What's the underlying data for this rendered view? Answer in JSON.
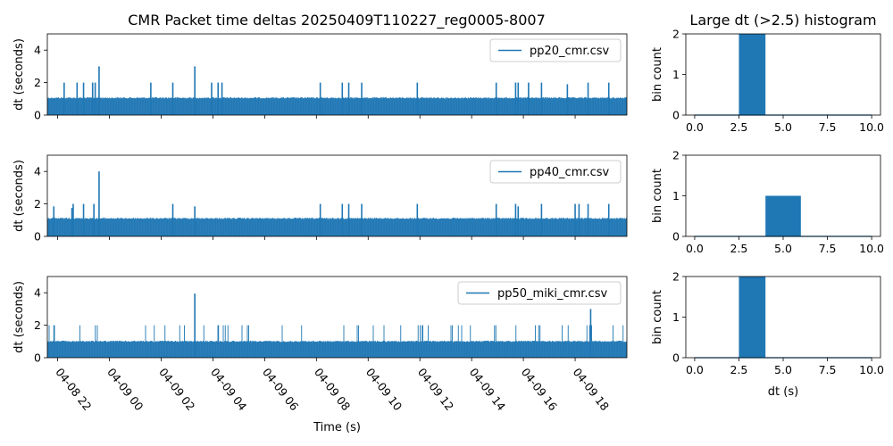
{
  "figure": {
    "title": "CMR Packet time deltas 20250409T110227_reg0005-8007",
    "hist_title": "Large dt (>2.5) histogram"
  },
  "chart_data": [
    {
      "type": "line",
      "legend": "pp20_cmr.csv",
      "xlabel": "",
      "ylabel": "dt (seconds)",
      "xlim": [
        -0.4,
        22.0
      ],
      "ylim": [
        0,
        5
      ],
      "yticks": [
        0,
        2,
        4
      ],
      "xtick_values": [
        0,
        2,
        4,
        6,
        8,
        10,
        12,
        14,
        16,
        18,
        20
      ],
      "xtick_labels": [
        "04-08 22",
        "04-09 00",
        "04-09 02",
        "04-09 04",
        "04-09 06",
        "04-09 08",
        "04-09 10",
        "04-09 12",
        "04-09 14",
        "04-09 16",
        "04-09 18"
      ],
      "baseline_max": 1.1,
      "spikes": [
        [
          0.25,
          2.0
        ],
        [
          0.75,
          2.0
        ],
        [
          1.0,
          2.0
        ],
        [
          1.35,
          2.0
        ],
        [
          1.45,
          2.0
        ],
        [
          1.6,
          3.0
        ],
        [
          3.6,
          2.0
        ],
        [
          4.45,
          2.0
        ],
        [
          5.3,
          3.0
        ],
        [
          5.95,
          2.0
        ],
        [
          6.2,
          2.0
        ],
        [
          6.35,
          2.0
        ],
        [
          10.15,
          2.0
        ],
        [
          11.0,
          2.0
        ],
        [
          11.25,
          2.0
        ],
        [
          11.75,
          2.0
        ],
        [
          13.9,
          2.0
        ],
        [
          16.95,
          2.0
        ],
        [
          17.7,
          2.0
        ],
        [
          17.8,
          2.0
        ],
        [
          18.2,
          2.0
        ],
        [
          18.7,
          2.0
        ],
        [
          19.7,
          1.9
        ],
        [
          20.5,
          2.0
        ],
        [
          21.3,
          2.0
        ]
      ]
    },
    {
      "type": "line",
      "legend": "pp40_cmr.csv",
      "xlabel": "",
      "ylabel": "dt (seconds)",
      "xlim": [
        -0.4,
        22.0
      ],
      "ylim": [
        0,
        5
      ],
      "yticks": [
        0,
        2,
        4
      ],
      "xtick_values": [
        0,
        2,
        4,
        6,
        8,
        10,
        12,
        14,
        16,
        18,
        20
      ],
      "xtick_labels": [
        "04-08 22",
        "04-09 00",
        "04-09 02",
        "04-09 04",
        "04-09 06",
        "04-09 08",
        "04-09 10",
        "04-09 12",
        "04-09 14",
        "04-09 16",
        "04-09 18"
      ],
      "baseline_max": 1.15,
      "spikes": [
        [
          -0.15,
          1.85
        ],
        [
          0.55,
          1.75
        ],
        [
          0.6,
          2.0
        ],
        [
          1.0,
          2.0
        ],
        [
          1.4,
          2.0
        ],
        [
          1.6,
          4.0
        ],
        [
          4.45,
          2.0
        ],
        [
          5.3,
          1.85
        ],
        [
          10.15,
          2.0
        ],
        [
          11.0,
          2.0
        ],
        [
          11.25,
          2.0
        ],
        [
          11.75,
          2.0
        ],
        [
          13.9,
          2.0
        ],
        [
          16.95,
          2.0
        ],
        [
          17.7,
          2.0
        ],
        [
          17.8,
          1.85
        ],
        [
          18.7,
          2.0
        ],
        [
          20.0,
          2.0
        ],
        [
          20.15,
          2.0
        ],
        [
          20.5,
          2.0
        ],
        [
          21.3,
          2.0
        ]
      ]
    },
    {
      "type": "line",
      "legend": "pp50_miki_cmr.csv",
      "xlabel": "Time (s)",
      "ylabel": "dt (seconds)",
      "xlim": [
        -0.4,
        22.0
      ],
      "ylim": [
        0,
        5
      ],
      "yticks": [
        0,
        2,
        4
      ],
      "xtick_values": [
        0,
        2,
        4,
        6,
        8,
        10,
        12,
        14,
        16,
        18,
        20
      ],
      "xtick_labels": [
        "04-08 22",
        "04-09 00",
        "04-09 02",
        "04-09 04",
        "04-09 06",
        "04-09 08",
        "04-09 10",
        "04-09 12",
        "04-09 14",
        "04-09 16",
        "04-09 18"
      ],
      "baseline_max": 1.05,
      "spikes": [
        [
          5.3,
          3.95
        ],
        [
          20.6,
          3.0
        ]
      ]
    },
    {
      "type": "bar",
      "title": "Large dt (>2.5) histogram",
      "xlabel": "",
      "ylabel": "bin count",
      "xlim": [
        -0.5,
        10.5
      ],
      "ylim": [
        0,
        2
      ],
      "yticks": [
        0,
        1,
        2
      ],
      "xticks": [
        0.0,
        2.5,
        5.0,
        7.5,
        10.0
      ],
      "xtick_labels": [
        "0.0",
        "2.5",
        "5.0",
        "7.5",
        "10.0"
      ],
      "bins": [
        [
          2.5,
          4.0,
          2
        ]
      ]
    },
    {
      "type": "bar",
      "xlabel": "",
      "ylabel": "bin count",
      "xlim": [
        -0.5,
        10.5
      ],
      "ylim": [
        0,
        2
      ],
      "yticks": [
        0,
        1,
        2
      ],
      "xticks": [
        0.0,
        2.5,
        5.0,
        7.5,
        10.0
      ],
      "xtick_labels": [
        "0.0",
        "2.5",
        "5.0",
        "7.5",
        "10.0"
      ],
      "bins": [
        [
          4.0,
          6.0,
          1
        ]
      ]
    },
    {
      "type": "bar",
      "xlabel": "dt (s)",
      "ylabel": "bin count",
      "xlim": [
        -0.5,
        10.5
      ],
      "ylim": [
        0,
        2
      ],
      "yticks": [
        0,
        1,
        2
      ],
      "xticks": [
        0.0,
        2.5,
        5.0,
        7.5,
        10.0
      ],
      "xtick_labels": [
        "0.0",
        "2.5",
        "5.0",
        "7.5",
        "10.0"
      ],
      "bins": [
        [
          2.5,
          4.0,
          2
        ]
      ]
    }
  ],
  "colors": {
    "series": "#1f77b4",
    "axis": "#000000",
    "legend_border": "#cccccc"
  }
}
